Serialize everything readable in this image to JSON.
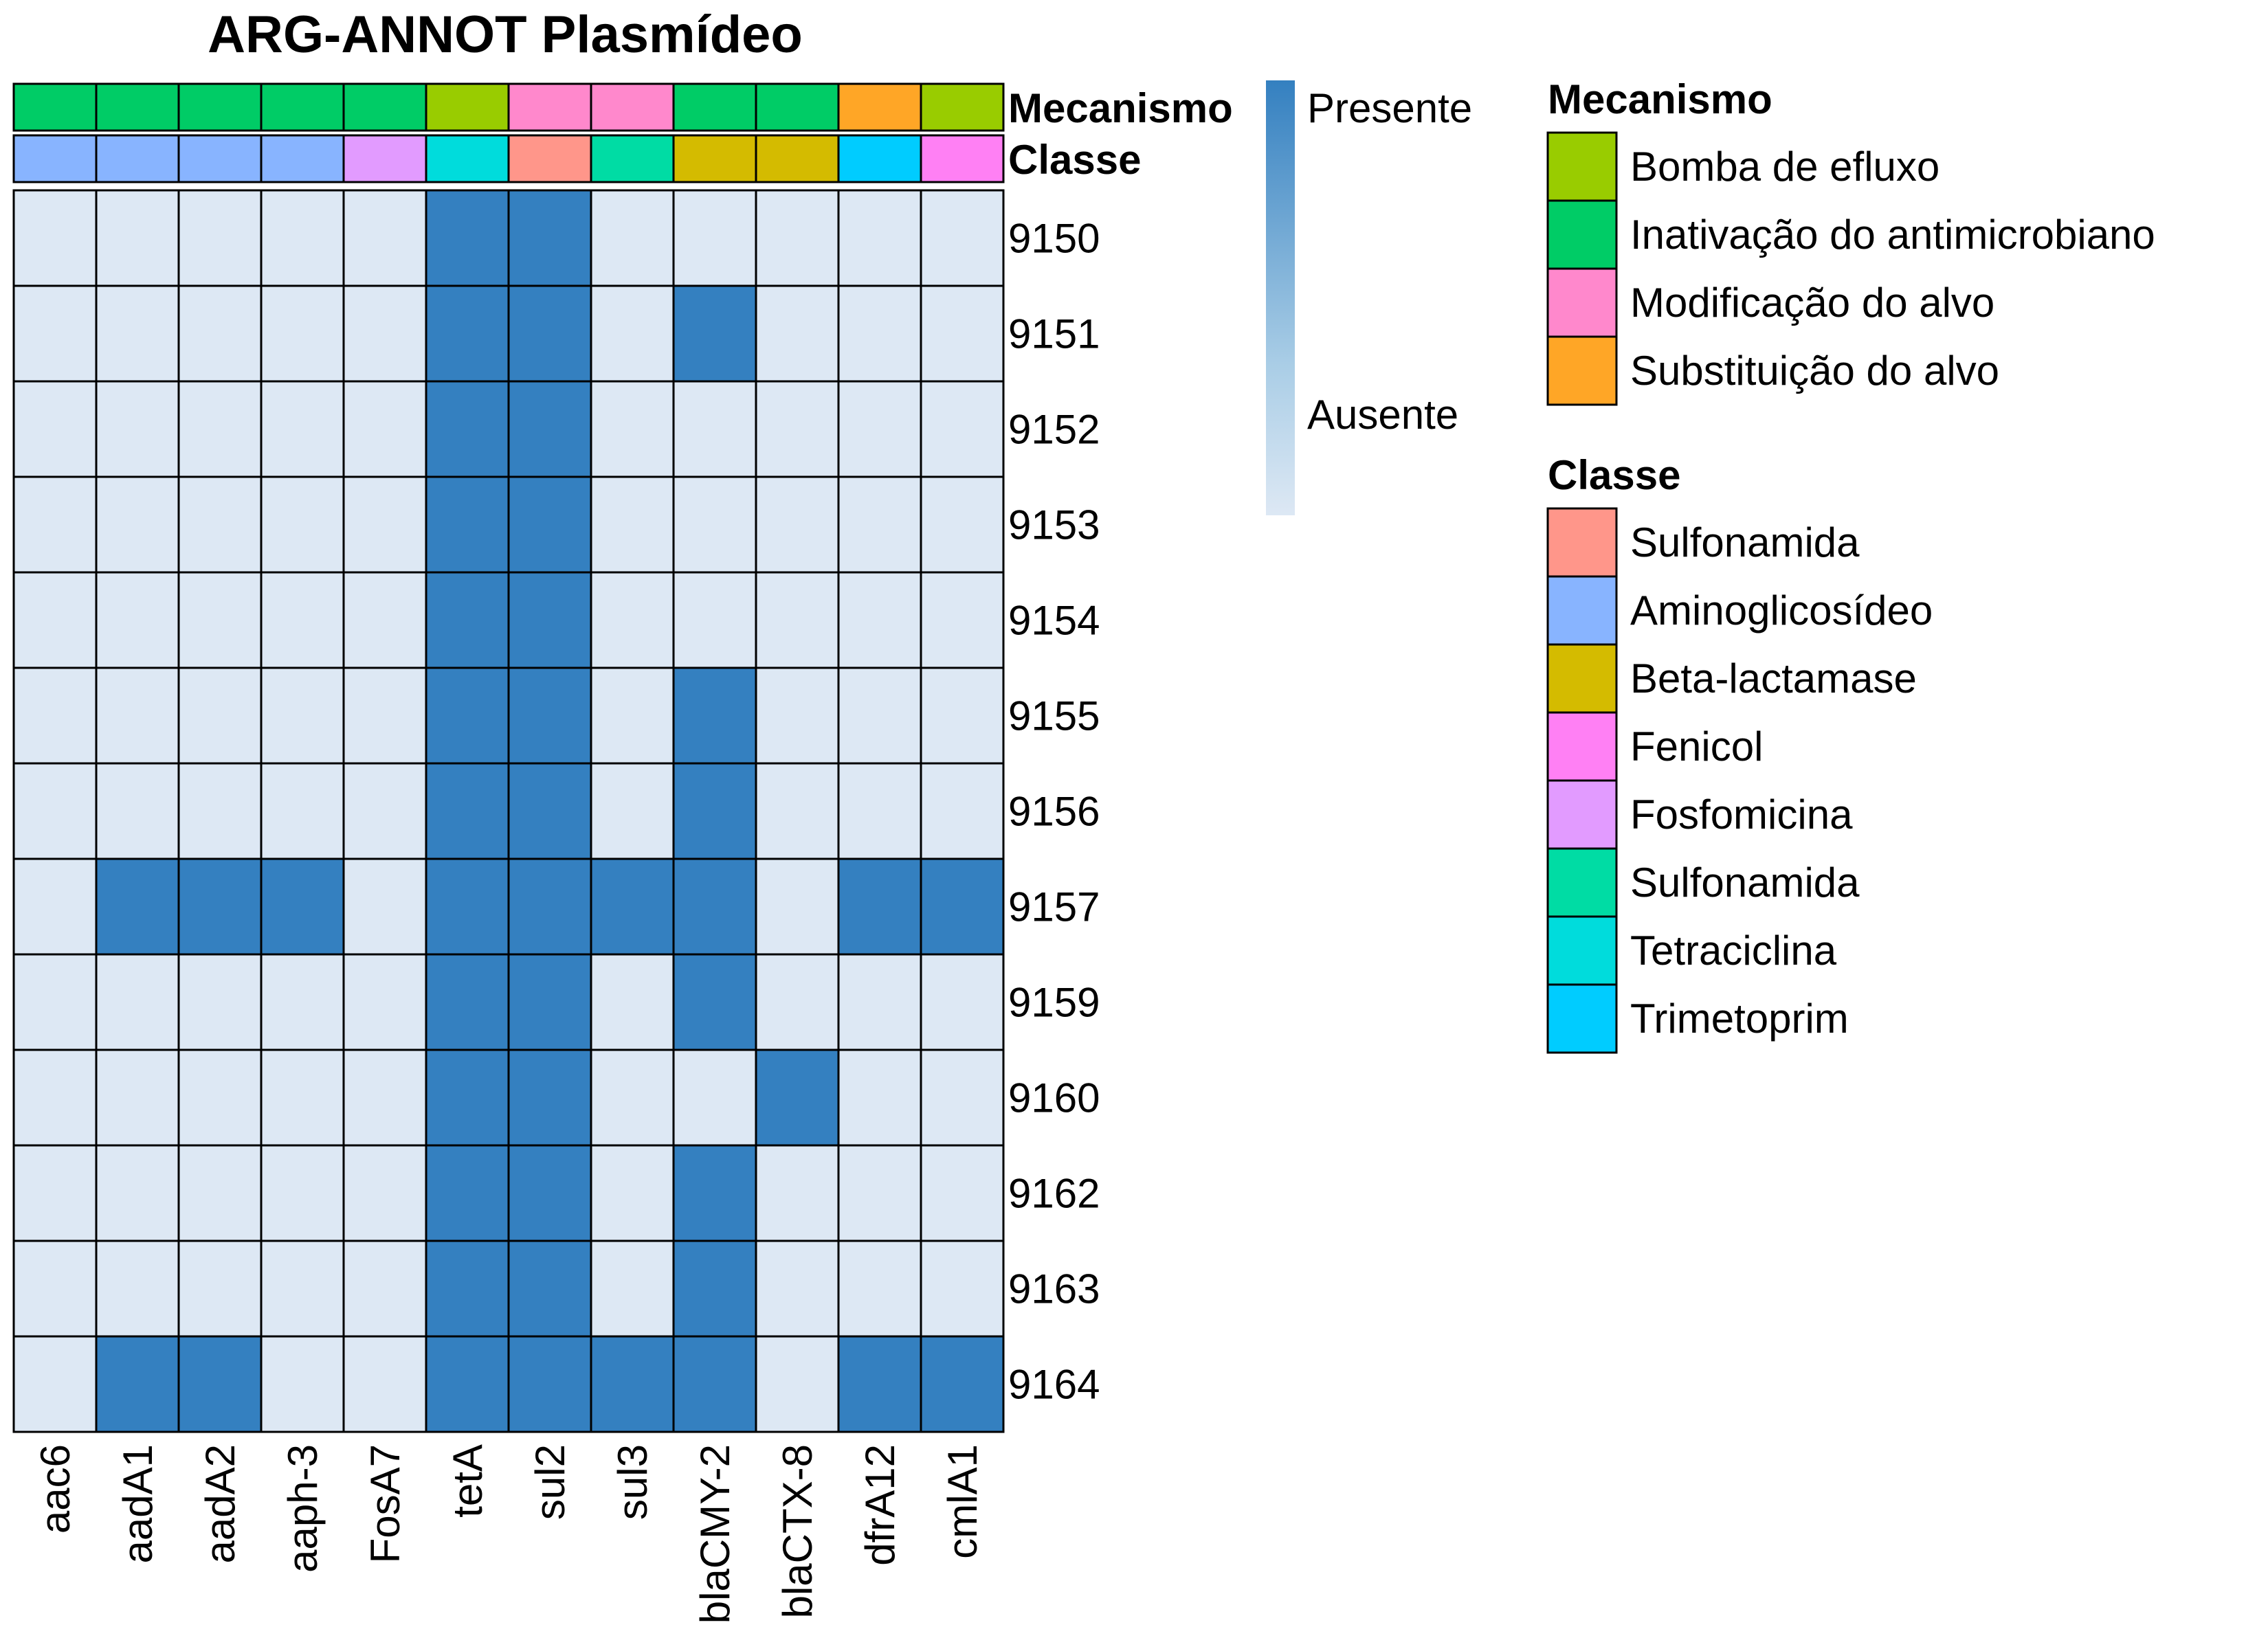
{
  "chart_data": {
    "type": "heatmap",
    "title": "ARG-ANNOT Plasmídeo",
    "columns": [
      "aac6",
      "aadA1",
      "aadA2",
      "aaph-3",
      "FosA7",
      "tetA",
      "sul2",
      "sul3",
      "blaCMY-2",
      "blaCTX-8",
      "dfrA12",
      "cmlA1"
    ],
    "rows": [
      "9150",
      "9151",
      "9152",
      "9153",
      "9154",
      "9155",
      "9156",
      "9157",
      "9159",
      "9160",
      "9162",
      "9163",
      "9164"
    ],
    "matrix": [
      [
        0,
        0,
        0,
        0,
        0,
        1,
        1,
        0,
        0,
        0,
        0,
        0
      ],
      [
        0,
        0,
        0,
        0,
        0,
        1,
        1,
        0,
        1,
        0,
        0,
        0
      ],
      [
        0,
        0,
        0,
        0,
        0,
        1,
        1,
        0,
        0,
        0,
        0,
        0
      ],
      [
        0,
        0,
        0,
        0,
        0,
        1,
        1,
        0,
        0,
        0,
        0,
        0
      ],
      [
        0,
        0,
        0,
        0,
        0,
        1,
        1,
        0,
        0,
        0,
        0,
        0
      ],
      [
        0,
        0,
        0,
        0,
        0,
        1,
        1,
        0,
        1,
        0,
        0,
        0
      ],
      [
        0,
        0,
        0,
        0,
        0,
        1,
        1,
        0,
        1,
        0,
        0,
        0
      ],
      [
        0,
        1,
        1,
        1,
        0,
        1,
        1,
        1,
        1,
        0,
        1,
        1
      ],
      [
        0,
        0,
        0,
        0,
        0,
        1,
        1,
        0,
        1,
        0,
        0,
        0
      ],
      [
        0,
        0,
        0,
        0,
        0,
        1,
        1,
        0,
        0,
        1,
        0,
        0
      ],
      [
        0,
        0,
        0,
        0,
        0,
        1,
        1,
        0,
        1,
        0,
        0,
        0
      ],
      [
        0,
        0,
        0,
        0,
        0,
        1,
        1,
        0,
        1,
        0,
        0,
        0
      ],
      [
        0,
        1,
        1,
        0,
        0,
        1,
        1,
        1,
        1,
        0,
        1,
        1
      ]
    ],
    "value_labels": {
      "high": "Presente",
      "low": "Ausente"
    },
    "colors": {
      "high": "#3480C0",
      "low": "#DDE8F4",
      "border": "#000000"
    },
    "annotations": {
      "mecanismo_label": "Mecanismo",
      "classe_label": "Classe",
      "mecanismo": [
        "Inativação do antimicrobiano",
        "Inativação do antimicrobiano",
        "Inativação do antimicrobiano",
        "Inativação do antimicrobiano",
        "Inativação do antimicrobiano",
        "Bomba de efluxo",
        "Modificação do alvo",
        "Modificação do alvo",
        "Inativação do antimicrobiano",
        "Inativação do antimicrobiano",
        "Substituição do alvo",
        "Bomba de efluxo"
      ],
      "classe_color_index": [
        1,
        1,
        1,
        1,
        4,
        6,
        0,
        5,
        2,
        2,
        7,
        3
      ]
    },
    "legend": {
      "placement": "right",
      "mecanismo_title": "Mecanismo",
      "mecanismo_items": [
        {
          "label": "Bomba de efluxo",
          "color": "#99CC00"
        },
        {
          "label": "Inativação do antimicrobiano",
          "color": "#00CC66"
        },
        {
          "label": "Modificação do alvo",
          "color": "#FF88CC"
        },
        {
          "label": "Substituição do alvo",
          "color": "#FFA626"
        }
      ],
      "classe_title": "Classe",
      "classe_items": [
        {
          "label": "Sulfonamida",
          "color": "#FF968A"
        },
        {
          "label": "Aminoglicosídeo",
          "color": "#88B4FF"
        },
        {
          "label": "Beta-lactamase",
          "color": "#D4BB00"
        },
        {
          "label": "Fenicol",
          "color": "#FF80F4"
        },
        {
          "label": "Fosfomicina",
          "color": "#E29BFF"
        },
        {
          "label": "Sulfonamida",
          "color": "#00DCA4"
        },
        {
          "label": "Tetraciclina",
          "color": "#00DCDC"
        },
        {
          "label": "Trimetoprim",
          "color": "#00CCFF"
        }
      ]
    }
  }
}
